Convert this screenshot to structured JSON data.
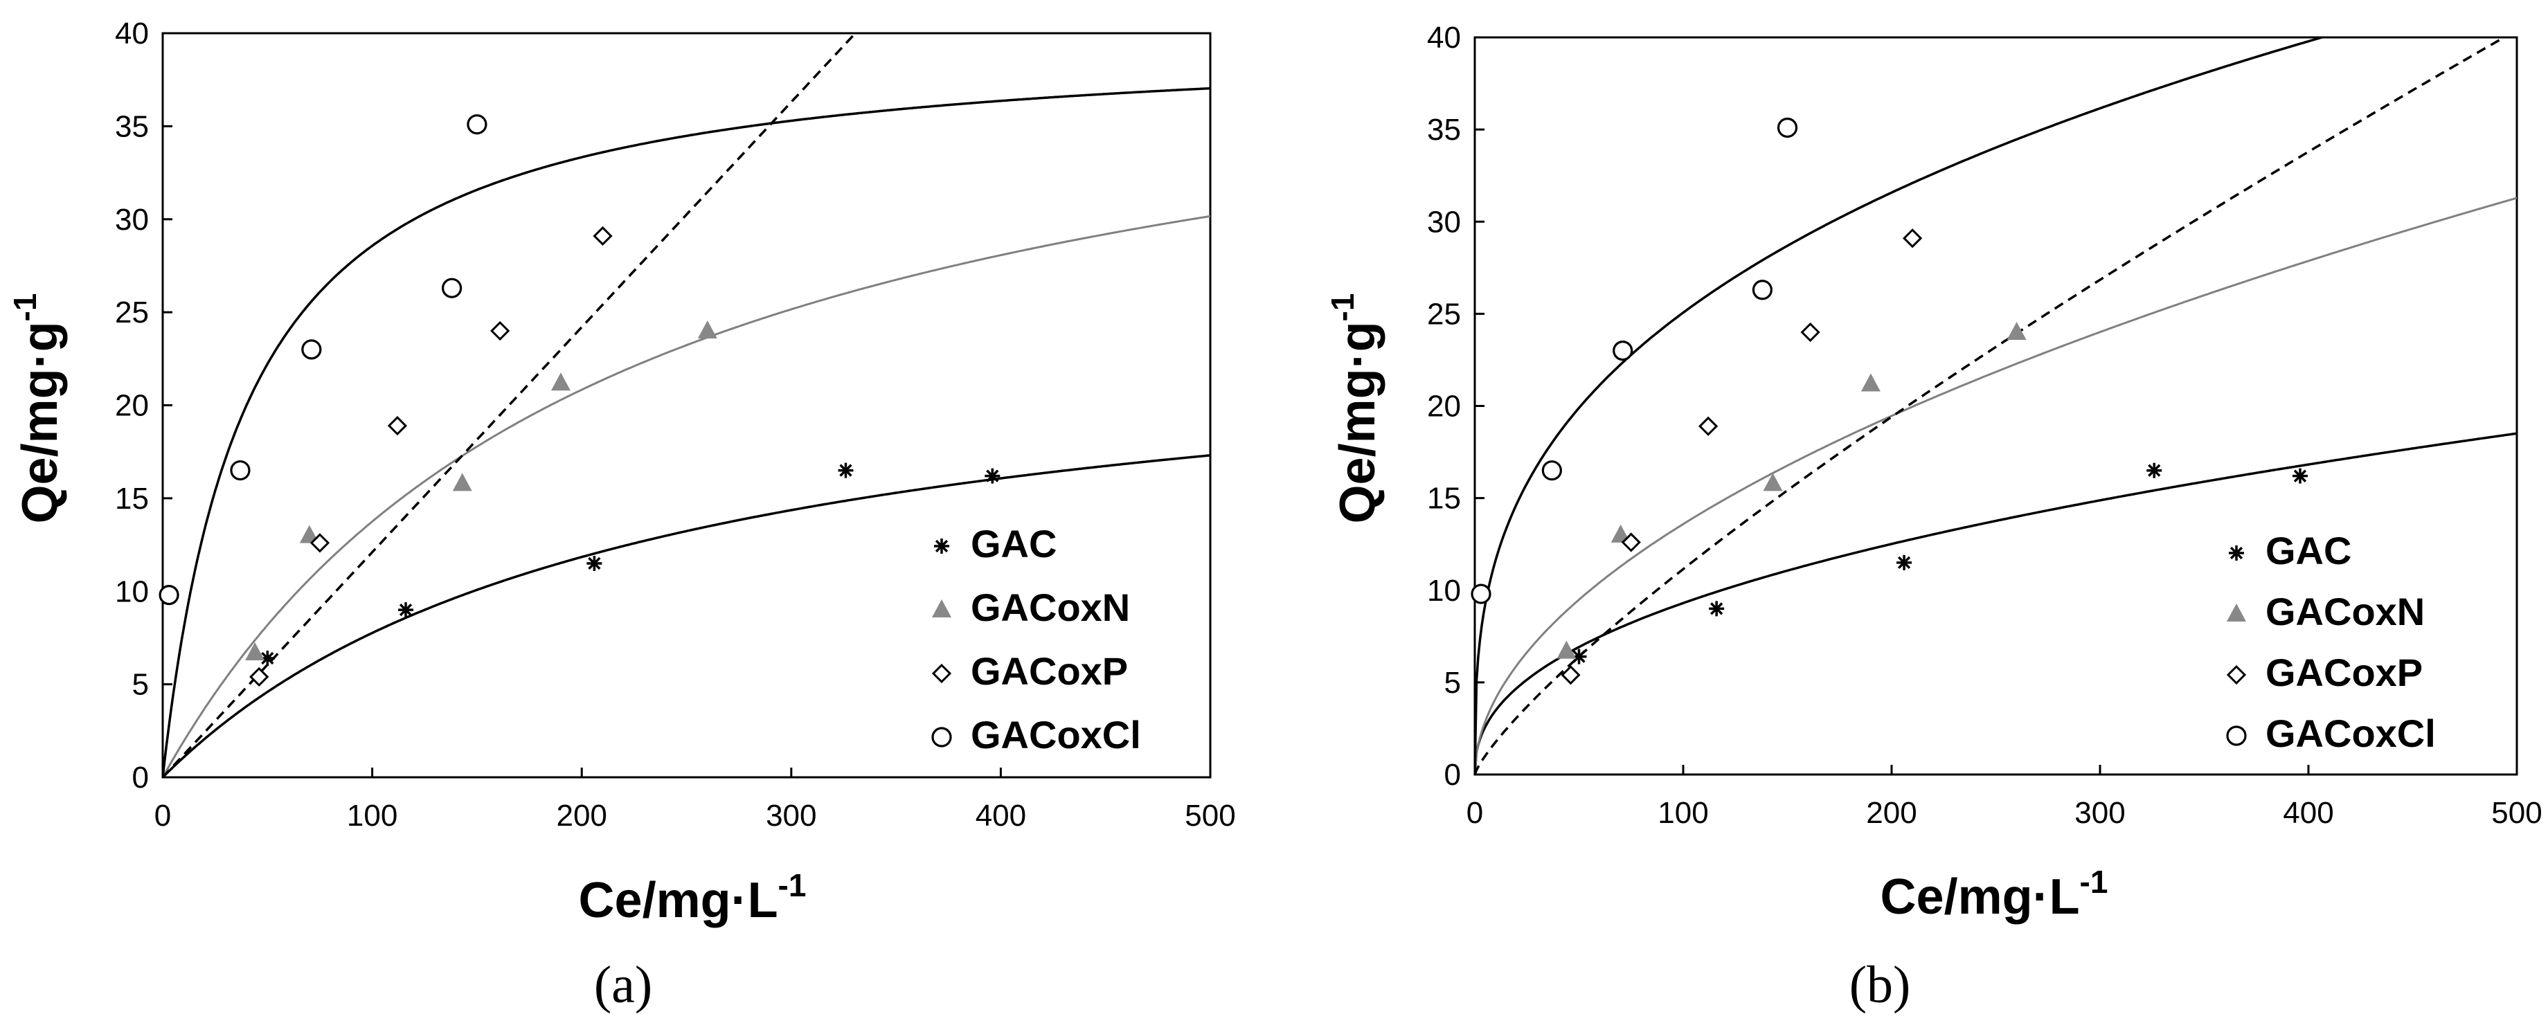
{
  "chart_data": [
    {
      "type": "scatter",
      "caption": "(a)",
      "xlabel": "Ce/mg·L",
      "xlabel_sup": "-1",
      "ylabel": "Qe/mg·g",
      "ylabel_sup": "-1",
      "xlim": [
        0,
        500
      ],
      "ylim": [
        0,
        40
      ],
      "xticks": [
        0,
        100,
        200,
        300,
        400,
        500
      ],
      "yticks": [
        0,
        5,
        10,
        15,
        20,
        25,
        30,
        35,
        40
      ],
      "legend_position": "lower-right",
      "series": [
        {
          "name": "GAC",
          "marker": "asterisk",
          "points": [
            [
              50,
              6.4
            ],
            [
              116,
              9.0
            ],
            [
              206,
              11.5
            ],
            [
              326,
              16.5
            ],
            [
              396,
              16.2
            ]
          ],
          "fit": {
            "model": "langmuir",
            "style": "solid",
            "color": "#000000",
            "qm": 25,
            "kl": 0.0045
          }
        },
        {
          "name": "GACoxN",
          "marker": "triangle",
          "points": [
            [
              44,
              6.7
            ],
            [
              70,
              13.0
            ],
            [
              143,
              15.8
            ],
            [
              190,
              21.2
            ],
            [
              260,
              24.0
            ]
          ],
          "fit": {
            "model": "langmuir",
            "style": "solid",
            "color": "#808080",
            "qm": 43,
            "kl": 0.0047
          }
        },
        {
          "name": "GACoxP",
          "marker": "diamond",
          "points": [
            [
              46,
              5.4
            ],
            [
              75,
              12.6
            ],
            [
              112,
              18.9
            ],
            [
              161,
              24.0
            ],
            [
              210,
              29.1
            ]
          ],
          "fit": {
            "model": "power",
            "style": "dashed",
            "color": "#000000",
            "a": 0.121,
            "b": 1.0
          }
        },
        {
          "name": "GACoxCl",
          "marker": "circle",
          "points": [
            [
              3,
              9.8
            ],
            [
              37,
              16.5
            ],
            [
              71,
              23.0
            ],
            [
              138,
              26.3
            ],
            [
              150,
              35.1
            ]
          ],
          "fit": {
            "model": "langmuir",
            "style": "solid",
            "color": "#000000",
            "qm": 40,
            "kl": 0.025
          }
        }
      ]
    },
    {
      "type": "scatter",
      "caption": "(b)",
      "xlabel": "Ce/mg·L",
      "xlabel_sup": "-1",
      "ylabel": "Qe/mg·g",
      "ylabel_sup": "-1",
      "xlim": [
        0,
        500
      ],
      "ylim": [
        0,
        40
      ],
      "xticks": [
        0,
        100,
        200,
        300,
        400,
        500
      ],
      "yticks": [
        0,
        5,
        10,
        15,
        20,
        25,
        30,
        35,
        40
      ],
      "legend_position": "lower-right",
      "series": [
        {
          "name": "GAC",
          "marker": "asterisk",
          "points": [
            [
              50,
              6.4
            ],
            [
              116,
              9.0
            ],
            [
              206,
              11.5
            ],
            [
              326,
              16.5
            ],
            [
              396,
              16.2
            ]
          ],
          "fit": {
            "model": "freundlich",
            "style": "solid",
            "color": "#000000",
            "k": 1.3,
            "n": 2.34
          }
        },
        {
          "name": "GACoxN",
          "marker": "triangle",
          "points": [
            [
              44,
              6.7
            ],
            [
              70,
              13.0
            ],
            [
              143,
              15.8
            ],
            [
              190,
              21.2
            ],
            [
              260,
              24.0
            ]
          ],
          "fit": {
            "model": "freundlich",
            "style": "solid",
            "color": "#808080",
            "k": 1.25,
            "n": 1.93
          }
        },
        {
          "name": "GACoxP",
          "marker": "diamond",
          "points": [
            [
              46,
              5.4
            ],
            [
              75,
              12.6
            ],
            [
              112,
              18.9
            ],
            [
              161,
              24.0
            ],
            [
              210,
              29.1
            ]
          ],
          "fit": {
            "model": "freundlich",
            "style": "dashed",
            "color": "#000000",
            "k": 0.28,
            "n": 1.25
          }
        },
        {
          "name": "GACoxCl",
          "marker": "circle",
          "points": [
            [
              3,
              9.8
            ],
            [
              37,
              16.5
            ],
            [
              71,
              23.0
            ],
            [
              138,
              26.3
            ],
            [
              150,
              35.1
            ]
          ],
          "fit": {
            "model": "freundlich",
            "style": "solid",
            "color": "#000000",
            "k": 5.4,
            "n": 3.0
          }
        }
      ]
    }
  ]
}
